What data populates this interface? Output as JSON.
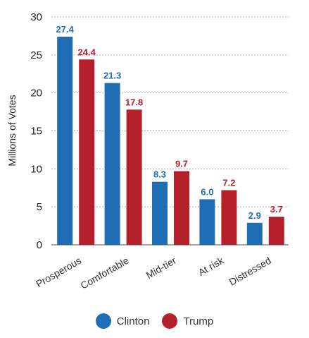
{
  "chart_data": {
    "type": "bar",
    "categories": [
      "Prosperous",
      "Comfortable",
      "Mid-tier",
      "At risk",
      "Distressed"
    ],
    "series": [
      {
        "name": "Clinton",
        "color": "#1f6db5",
        "values": [
          27.4,
          21.3,
          8.3,
          6.0,
          2.9
        ]
      },
      {
        "name": "Trump",
        "color": "#b5202a",
        "values": [
          24.4,
          17.8,
          9.7,
          7.2,
          3.7
        ]
      }
    ],
    "value_labels": {
      "Clinton": [
        "27.4",
        "21.3",
        "8.3",
        "6.0",
        "2.9"
      ],
      "Trump": [
        "24.4",
        "17.8",
        "9.7",
        "7.2",
        "3.7"
      ]
    },
    "ylabel": "Millions of Votes",
    "xlabel": "",
    "ylim": [
      0,
      30
    ],
    "yticks": [
      0,
      5,
      10,
      15,
      20,
      25,
      30
    ],
    "grid": true,
    "legend_position": "bottom"
  }
}
